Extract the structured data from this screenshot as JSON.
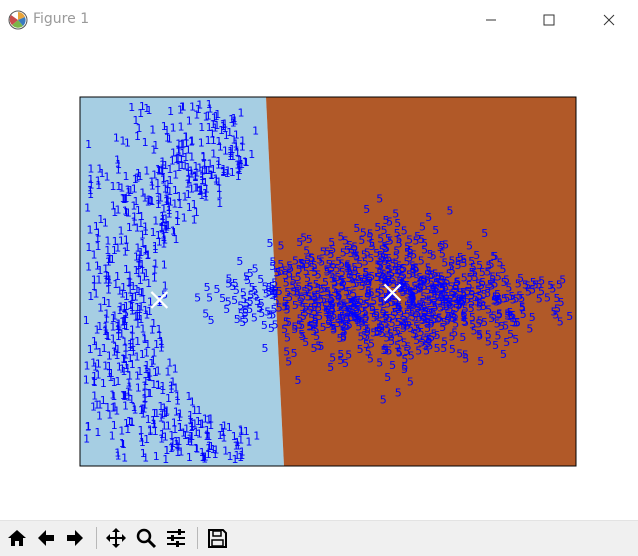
{
  "window": {
    "title": "Figure 1"
  },
  "chart_data": {
    "type": "scatter",
    "background_regions": [
      {
        "label": "1",
        "color": "#a6cee3"
      },
      {
        "label": "5",
        "color": "#b15928"
      }
    ],
    "marker_color": "#0000ff",
    "marker_labels": [
      "1",
      "5"
    ],
    "centroid_color": "#ffffff",
    "centroids": [
      {
        "label": "1",
        "x": 0.16,
        "y": 0.55
      },
      {
        "label": "5",
        "x": 0.63,
        "y": 0.53
      }
    ],
    "xlim": [
      0,
      1
    ],
    "ylim": [
      1,
      0
    ],
    "grid": false,
    "axis_ticks": false,
    "title": "",
    "xlabel": "",
    "ylabel": ""
  },
  "toolbar": {
    "buttons": [
      {
        "name": "home",
        "icon": "home-icon"
      },
      {
        "name": "back",
        "icon": "arrow-left-icon"
      },
      {
        "name": "forward",
        "icon": "arrow-right-icon"
      },
      {
        "name": "pan",
        "icon": "move-icon"
      },
      {
        "name": "zoom",
        "icon": "zoom-icon"
      },
      {
        "name": "configure",
        "icon": "sliders-icon"
      },
      {
        "name": "save",
        "icon": "save-icon"
      }
    ]
  }
}
